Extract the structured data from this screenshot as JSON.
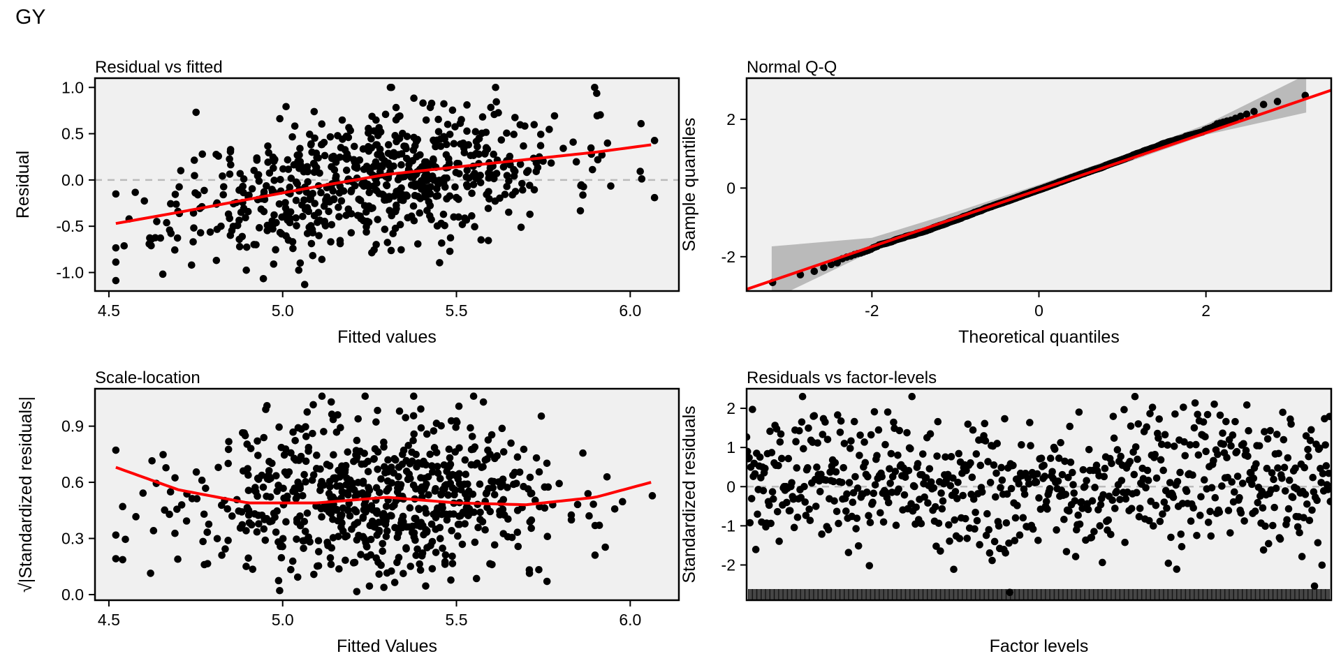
{
  "figure_title": "GY",
  "colors": {
    "points": "#000000",
    "smooth": "#ff0000",
    "panel_bg": "#f0f0f0",
    "reference": "#bbbbbb",
    "ci_band": "#a8a8a8"
  },
  "chart_data": [
    {
      "id": "resid_fitted",
      "type": "scatter",
      "title": "Residual vs fitted",
      "xlabel": "Fitted values",
      "ylabel": "Residual",
      "xlim": [
        4.46,
        6.14
      ],
      "ylim": [
        -1.2,
        1.1
      ],
      "xticks": [
        4.5,
        5.0,
        5.5,
        6.0
      ],
      "xtick_labels": [
        "4.5",
        "5.0",
        "5.5",
        "6.0"
      ],
      "yticks": [
        -1.0,
        -0.5,
        0.0,
        0.5,
        1.0
      ],
      "ytick_labels": [
        "-1.0",
        "-0.5",
        "0.0",
        "0.5",
        "1.0"
      ],
      "reference_line": {
        "y": 0,
        "style": "dashed"
      },
      "smooth": {
        "x": [
          4.52,
          4.7,
          4.9,
          5.1,
          5.3,
          5.5,
          5.7,
          5.9,
          6.06
        ],
        "y": [
          -0.47,
          -0.35,
          -0.21,
          -0.07,
          0.06,
          0.14,
          0.22,
          0.3,
          0.38
        ]
      },
      "points": {
        "n": 700,
        "x_mean": 5.25,
        "x_sd": 0.28,
        "y_sd": 0.36,
        "seed": 11
      }
    },
    {
      "id": "normal_qq",
      "type": "scatter",
      "title": "Normal Q-Q",
      "xlabel": "Theoretical quantiles",
      "ylabel": "Sample quantiles",
      "xlim": [
        -3.5,
        3.5
      ],
      "ylim": [
        -3.0,
        3.2
      ],
      "xticks": [
        -2,
        0,
        2
      ],
      "xtick_labels": [
        "-2",
        "0",
        "2"
      ],
      "yticks": [
        -2,
        0,
        2
      ],
      "ytick_labels": [
        "-2",
        "0",
        "2"
      ],
      "line": {
        "x": [
          -3.5,
          3.5
        ],
        "y": [
          -2.95,
          2.85
        ]
      },
      "band": {
        "x": [
          -3.2,
          -2.0,
          -1.0,
          0.0,
          1.0,
          2.0,
          3.2
        ],
        "lower": [
          -3.25,
          -1.85,
          -0.95,
          -0.1,
          0.7,
          1.55,
          2.2
        ],
        "upper": [
          -1.7,
          -1.45,
          -0.7,
          0.1,
          0.95,
          1.85,
          3.3
        ]
      },
      "points": {
        "n": 700,
        "seed": 7
      }
    },
    {
      "id": "scale_location",
      "type": "scatter",
      "title": "Scale-location",
      "xlabel": "Fitted Values",
      "ylabel": "√|Standardized residuals|",
      "xlim": [
        4.46,
        6.14
      ],
      "ylim": [
        -0.03,
        1.1
      ],
      "xticks": [
        4.5,
        5.0,
        5.5,
        6.0
      ],
      "xtick_labels": [
        "4.5",
        "5.0",
        "5.5",
        "6.0"
      ],
      "yticks": [
        0.0,
        0.3,
        0.6,
        0.9
      ],
      "ytick_labels": [
        "0.0",
        "0.3",
        "0.6",
        "0.9"
      ],
      "smooth": {
        "x": [
          4.52,
          4.7,
          4.9,
          5.1,
          5.3,
          5.5,
          5.7,
          5.9,
          6.06
        ],
        "y": [
          0.68,
          0.56,
          0.49,
          0.49,
          0.52,
          0.49,
          0.48,
          0.52,
          0.6
        ]
      },
      "points": {
        "n": 700,
        "x_mean": 5.25,
        "x_sd": 0.28,
        "seed": 23
      }
    },
    {
      "id": "resid_factor",
      "type": "scatter",
      "title": "Residuals vs factor-levels",
      "xlabel": "Factor levels",
      "ylabel": "Standardized residuals",
      "xlim": [
        0,
        700
      ],
      "ylim": [
        -2.9,
        2.5
      ],
      "yticks": [
        -2,
        -1,
        0,
        1,
        2
      ],
      "ytick_labels": [
        "-2",
        "-1",
        "0",
        "1",
        "2"
      ],
      "reference_line": {
        "y": 0,
        "style": "dashed"
      },
      "points": {
        "n": 700,
        "y_sd": 0.9,
        "seed": 31
      }
    }
  ]
}
